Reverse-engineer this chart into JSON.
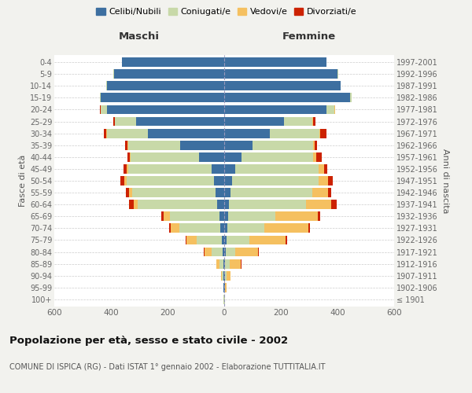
{
  "age_groups": [
    "100+",
    "95-99",
    "90-94",
    "85-89",
    "80-84",
    "75-79",
    "70-74",
    "65-69",
    "60-64",
    "55-59",
    "50-54",
    "45-49",
    "40-44",
    "35-39",
    "30-34",
    "25-29",
    "20-24",
    "15-19",
    "10-14",
    "5-9",
    "0-4"
  ],
  "birth_years": [
    "≤ 1901",
    "1902-1906",
    "1907-1911",
    "1912-1916",
    "1917-1921",
    "1922-1926",
    "1927-1931",
    "1932-1936",
    "1937-1941",
    "1942-1946",
    "1947-1951",
    "1952-1956",
    "1957-1961",
    "1962-1966",
    "1967-1971",
    "1972-1976",
    "1977-1981",
    "1982-1986",
    "1987-1991",
    "1992-1996",
    "1997-2001"
  ],
  "male": {
    "celibi": [
      1,
      2,
      2,
      3,
      5,
      8,
      14,
      18,
      25,
      30,
      35,
      45,
      90,
      155,
      270,
      310,
      415,
      435,
      415,
      390,
      360
    ],
    "coniugati": [
      1,
      2,
      5,
      15,
      40,
      90,
      145,
      175,
      280,
      295,
      310,
      295,
      240,
      185,
      145,
      75,
      20,
      5,
      2,
      2,
      2
    ],
    "vedovi": [
      0,
      0,
      3,
      10,
      25,
      35,
      30,
      20,
      15,
      10,
      8,
      5,
      3,
      2,
      2,
      2,
      1,
      0,
      0,
      0,
      0
    ],
    "divorziati": [
      0,
      0,
      0,
      0,
      1,
      2,
      5,
      8,
      15,
      12,
      15,
      10,
      8,
      8,
      8,
      5,
      2,
      0,
      0,
      0,
      0
    ]
  },
  "female": {
    "nubili": [
      1,
      2,
      3,
      4,
      5,
      8,
      12,
      15,
      18,
      22,
      28,
      38,
      60,
      100,
      160,
      210,
      360,
      445,
      410,
      400,
      360
    ],
    "coniugate": [
      1,
      2,
      5,
      15,
      35,
      80,
      130,
      165,
      270,
      290,
      305,
      295,
      255,
      215,
      175,
      100,
      30,
      5,
      2,
      2,
      2
    ],
    "vedove": [
      1,
      3,
      15,
      40,
      80,
      130,
      155,
      150,
      90,
      55,
      35,
      20,
      10,
      5,
      5,
      3,
      1,
      0,
      0,
      0,
      0
    ],
    "divorziate": [
      0,
      0,
      0,
      1,
      2,
      3,
      5,
      8,
      18,
      12,
      15,
      10,
      20,
      8,
      20,
      8,
      2,
      0,
      0,
      0,
      0
    ]
  },
  "colors": {
    "celibi": "#3d6fa0",
    "coniugati": "#c8d9a8",
    "vedovi": "#f5c060",
    "divorziati": "#cc2200"
  },
  "xlim": 600,
  "title": "Popolazione per età, sesso e stato civile - 2002",
  "subtitle": "COMUNE DI ISPICA (RG) - Dati ISTAT 1° gennaio 2002 - Elaborazione TUTTITALIA.IT",
  "ylabel_left": "Fasce di età",
  "ylabel_right": "Anni di nascita",
  "xlabel_left": "Maschi",
  "xlabel_right": "Femmine",
  "bg_color": "#f2f2ee",
  "plot_bg": "#ffffff"
}
